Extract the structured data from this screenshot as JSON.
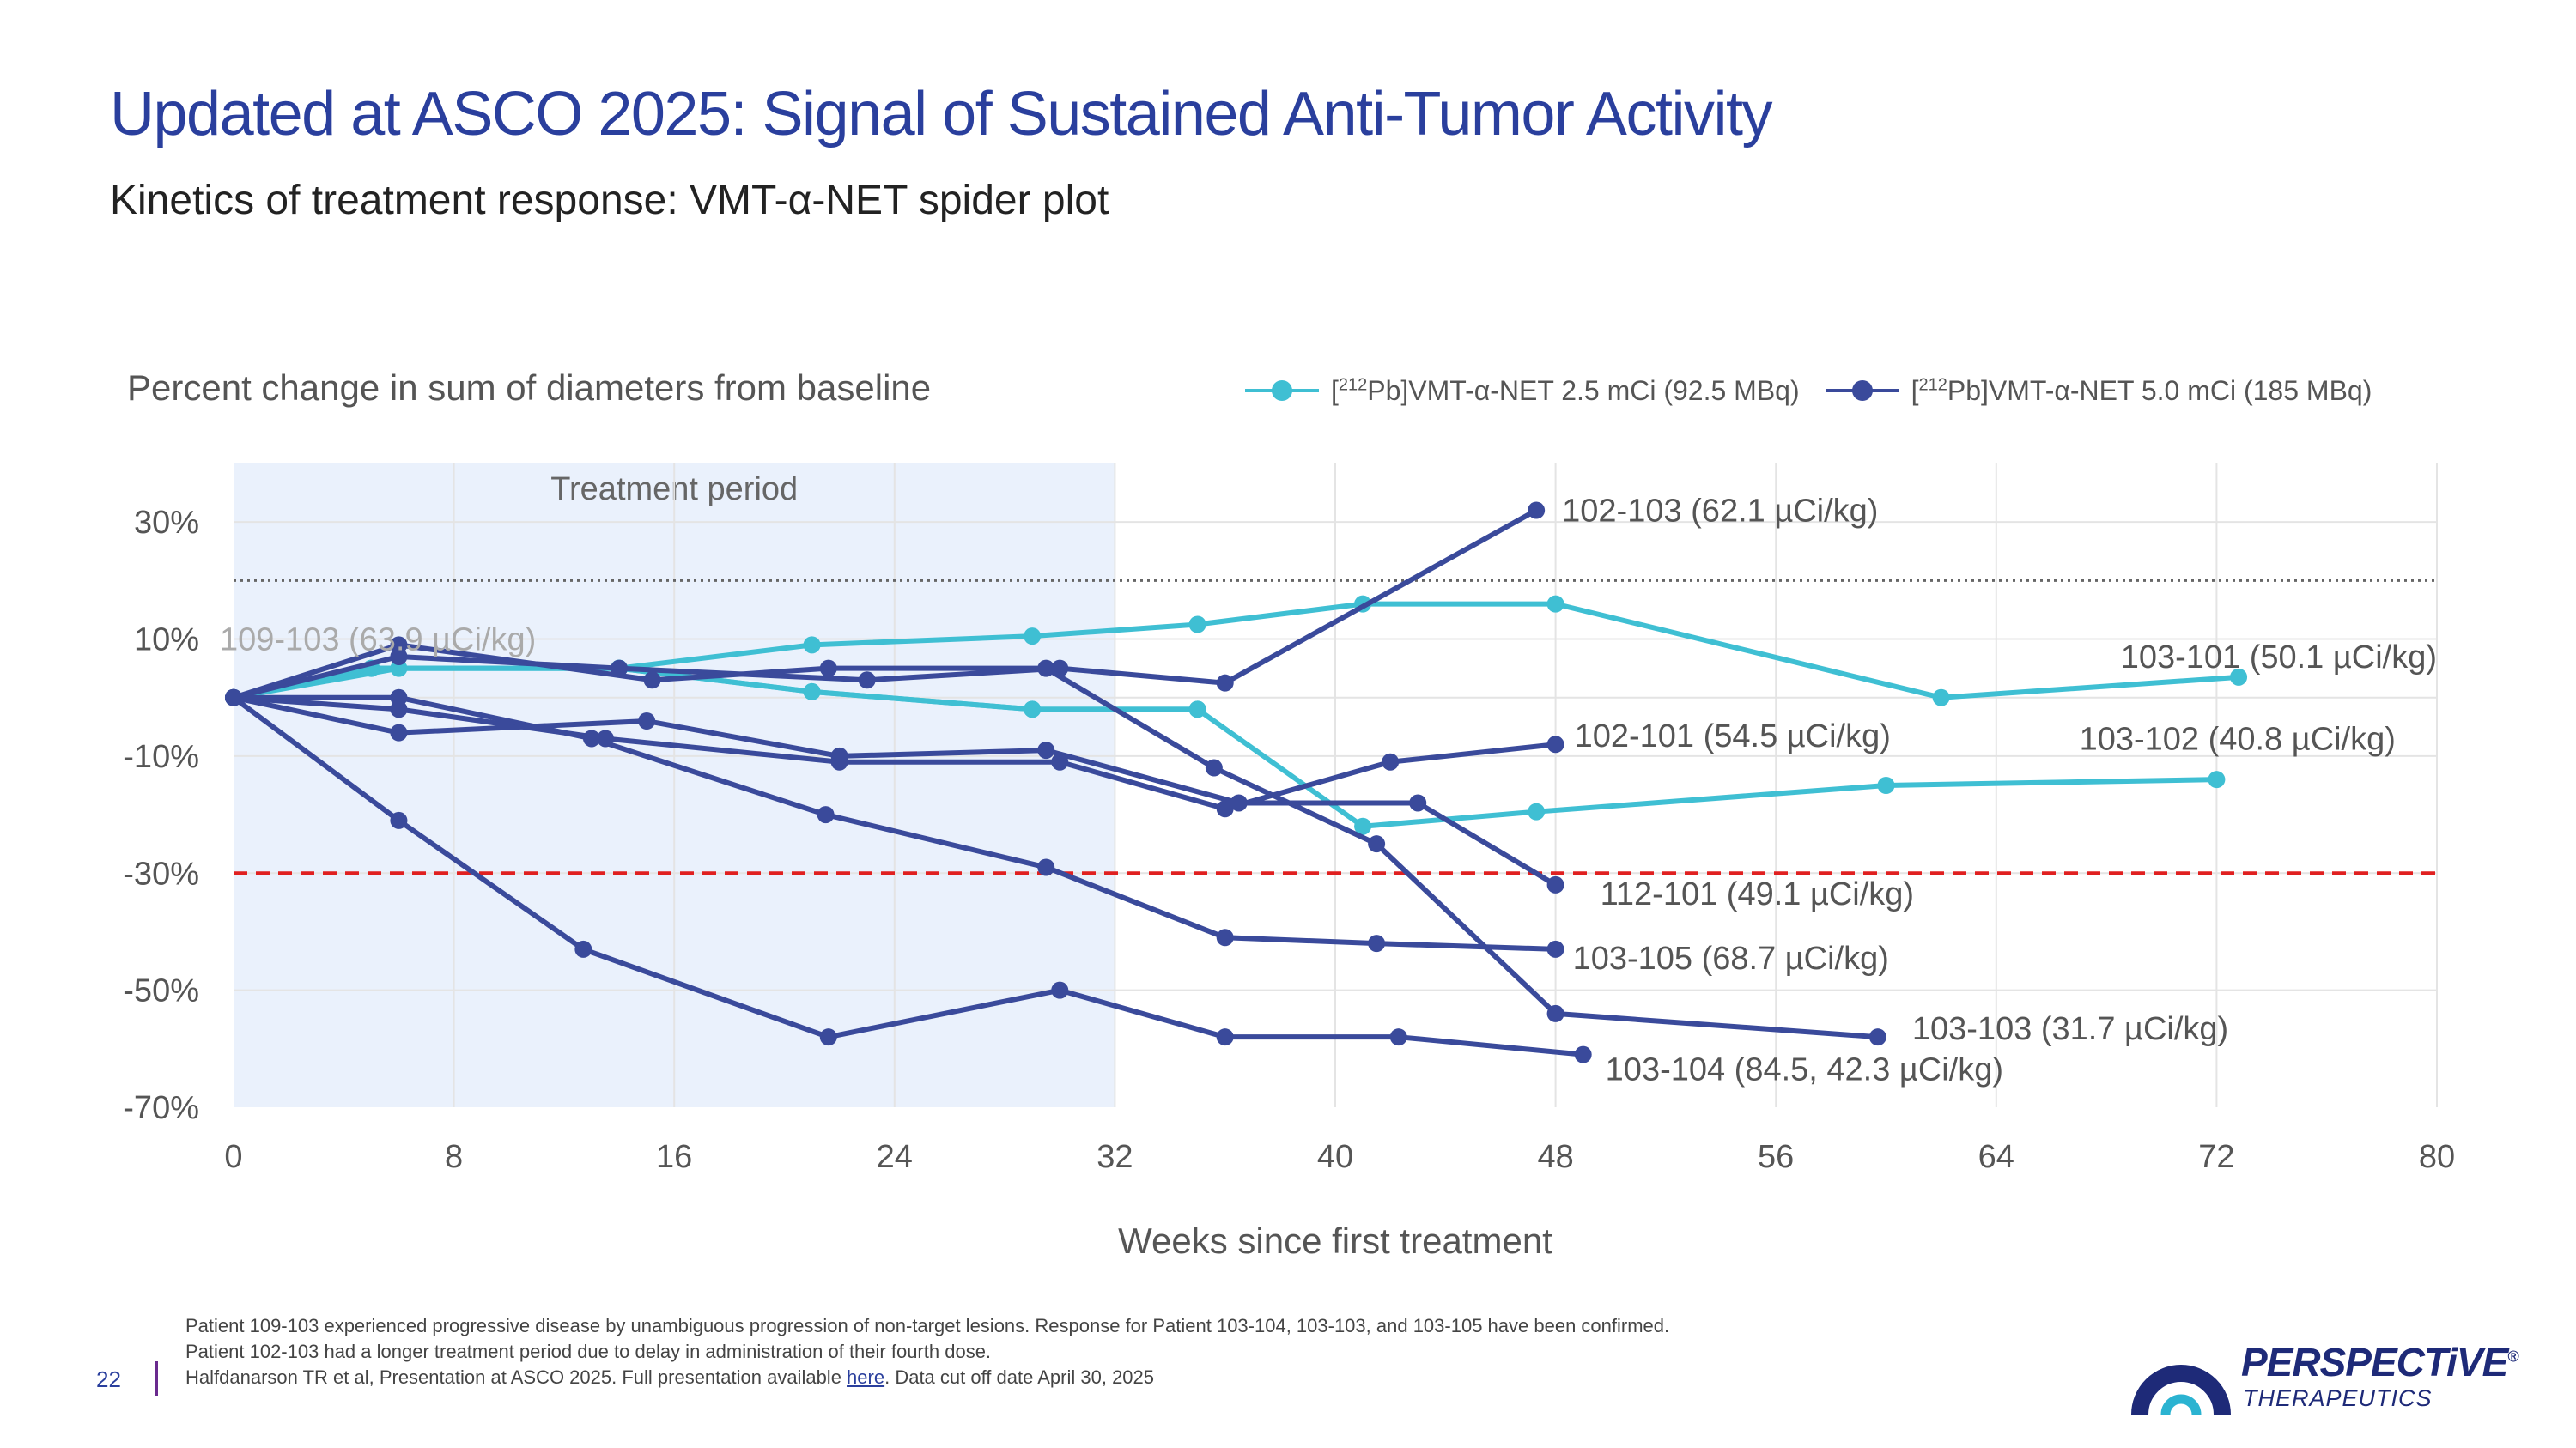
{
  "slide": {
    "title": "Updated at ASCO 2025: Signal of Sustained Anti-Tumor Activity",
    "subtitle": "Kinetics of treatment response: VMT-α-NET spider plot",
    "page_number": "22"
  },
  "legend": {
    "items": [
      {
        "prefix": "[",
        "sup": "212",
        "text": "Pb]VMT-α-NET 2.5 mCi (92.5 MBq)",
        "color": "#3fbfd3"
      },
      {
        "prefix": "[",
        "sup": "212",
        "text": "Pb]VMT-α-NET 5.0 mCi (185 MBq)",
        "color": "#3a4a9b"
      }
    ]
  },
  "footnotes": {
    "line1": "Patient 109-103 experienced progressive disease by unambiguous progression of non-target lesions. Response for Patient 103-104, 103-103, and 103-105 have been confirmed.",
    "line2": "Patient 102-103 had a longer treatment period due to delay in administration of their fourth dose.",
    "line3_pre": "Halfdanarson TR et al, Presentation at ASCO 2025. Full presentation available ",
    "line3_link": "here",
    "line3_post": ". Data cut off date April 30, 2025"
  },
  "logo": {
    "name": "PERSPECTiVE",
    "tm": "®",
    "sub": "THERAPEUTICS",
    "colors": {
      "outer": "#1e2a78",
      "inner": "#2bb3d1"
    }
  },
  "chart_data": {
    "type": "line",
    "title": "Percent change in sum of diameters from baseline",
    "xlabel": "Weeks since first treatment",
    "ylabel": "Percent change in sum of diameters from baseline",
    "xlim": [
      0,
      80
    ],
    "ylim": [
      -70,
      40
    ],
    "xticks": [
      0,
      8,
      16,
      24,
      32,
      40,
      48,
      56,
      64,
      72,
      80
    ],
    "yticks": [
      30,
      10,
      -10,
      -30,
      -50,
      -70
    ],
    "ytick_labels": [
      "30%",
      "10%",
      "-10%",
      "-30%",
      "-50%",
      "-70%"
    ],
    "shaded_region": {
      "x0": 0,
      "x1": 32,
      "label": "Treatment period",
      "color": "#eaf1fc"
    },
    "reference_lines": [
      {
        "y": 20,
        "style": "dotted",
        "color": "#666666",
        "meaning": "+20% progression threshold"
      },
      {
        "y": -30,
        "style": "dashed",
        "color": "#e02020",
        "meaning": "-30% partial response threshold"
      }
    ],
    "colors": {
      "dose_2_5": "#3fbfd3",
      "dose_5_0": "#3a4a9b"
    },
    "series": [
      {
        "name": "109-103 (63.9 µCi/kg)",
        "dose": "2.5 mCi",
        "label_color": "#aaaaaa",
        "x": [
          0,
          6,
          14,
          21,
          29,
          35
        ],
        "y": [
          0,
          5,
          5,
          1,
          -2,
          -2
        ]
      },
      {
        "name": "103-101 (50.1 µCi/kg)",
        "dose": "2.5 mCi",
        "x": [
          0,
          5,
          14,
          21,
          29,
          35,
          41,
          48,
          62,
          72.8
        ],
        "y": [
          0,
          5,
          5,
          9,
          10.5,
          12.5,
          16,
          16,
          0,
          3.5
        ]
      },
      {
        "name": "103-102 (40.8 µCi/kg)",
        "dose": "2.5 mCi",
        "x": [
          0,
          5,
          14,
          21,
          29,
          35,
          41,
          47.3,
          60,
          72
        ],
        "y": [
          0,
          5,
          5,
          1,
          -2,
          -2,
          -22,
          -19.5,
          -15,
          -14
        ]
      },
      {
        "name": "102-103 (62.1 µCi/kg)",
        "dose": "5.0 mCi",
        "x": [
          0,
          6,
          14,
          23,
          30,
          36,
          47.3
        ],
        "y": [
          0,
          7,
          5,
          3,
          5,
          2.5,
          32
        ]
      },
      {
        "name": "102-101 (54.5 µCi/kg)",
        "dose": "5.0 mCi",
        "x": [
          0,
          6,
          13.5,
          22,
          30,
          36,
          42,
          48
        ],
        "y": [
          0,
          -2,
          -7,
          -11,
          -11,
          -19,
          -11,
          -8
        ]
      },
      {
        "name": "112-101 (49.1 µCi/kg)",
        "dose": "5.0 mCi",
        "x": [
          0,
          6,
          15,
          22,
          29.5,
          36.5,
          43,
          48
        ],
        "y": [
          0,
          -6,
          -4,
          -10,
          -9,
          -18,
          -18,
          -32
        ]
      },
      {
        "name": "103-105 (68.7 µCi/kg)",
        "dose": "5.0 mCi",
        "x": [
          0,
          6,
          13,
          21.5,
          29.5,
          36,
          41.5,
          48
        ],
        "y": [
          0,
          0,
          -7,
          -20,
          -29,
          -41,
          -42,
          -43
        ]
      },
      {
        "name": "103-103 (31.7 µCi/kg)",
        "dose": "5.0 mCi",
        "x": [
          0,
          6,
          15.2,
          21.6,
          29.5,
          35.6,
          41.5,
          48,
          59.7
        ],
        "y": [
          0,
          9,
          3,
          5,
          5,
          -12,
          -25,
          -54,
          -58
        ]
      },
      {
        "name": "103-104 (84.5, 42.3 µCi/kg)",
        "dose": "5.0 mCi",
        "x": [
          0,
          6,
          12.7,
          21.6,
          30,
          36,
          42.3,
          49
        ],
        "y": [
          0,
          -21,
          -43,
          -58,
          -50,
          -58,
          -58,
          -61
        ]
      }
    ]
  }
}
